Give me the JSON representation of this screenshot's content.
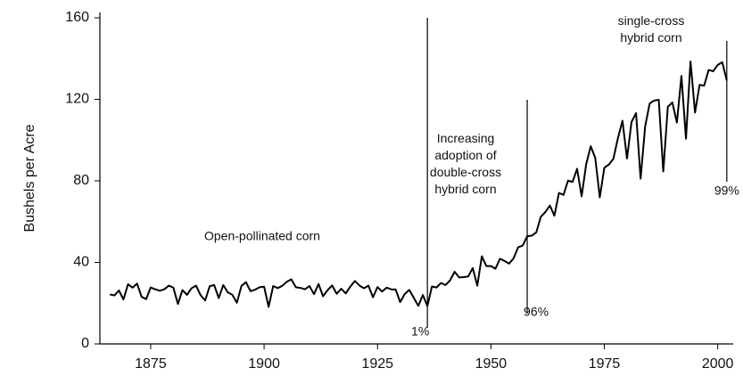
{
  "chart_data": {
    "type": "line",
    "y_label": "Bushels per Acre",
    "x": [
      1866,
      1867,
      1868,
      1869,
      1870,
      1871,
      1872,
      1873,
      1874,
      1875,
      1876,
      1877,
      1878,
      1879,
      1880,
      1881,
      1882,
      1883,
      1884,
      1885,
      1886,
      1887,
      1888,
      1889,
      1890,
      1891,
      1892,
      1893,
      1894,
      1895,
      1896,
      1897,
      1898,
      1899,
      1900,
      1901,
      1902,
      1903,
      1904,
      1905,
      1906,
      1907,
      1908,
      1909,
      1910,
      1911,
      1912,
      1913,
      1914,
      1915,
      1916,
      1917,
      1918,
      1919,
      1920,
      1921,
      1922,
      1923,
      1924,
      1925,
      1926,
      1927,
      1928,
      1929,
      1930,
      1931,
      1932,
      1933,
      1934,
      1935,
      1936,
      1937,
      1938,
      1939,
      1940,
      1941,
      1942,
      1943,
      1944,
      1945,
      1946,
      1947,
      1948,
      1949,
      1950,
      1951,
      1952,
      1953,
      1954,
      1955,
      1956,
      1957,
      1958,
      1959,
      1960,
      1961,
      1962,
      1963,
      1964,
      1965,
      1966,
      1967,
      1968,
      1969,
      1970,
      1971,
      1972,
      1973,
      1974,
      1975,
      1976,
      1977,
      1978,
      1979,
      1980,
      1981,
      1982,
      1983,
      1984,
      1985,
      1986,
      1987,
      1988,
      1989,
      1990,
      1991,
      1992,
      1993,
      1994,
      1995,
      1996,
      1997,
      1998,
      1999,
      2000,
      2001,
      2002
    ],
    "series": [
      {
        "color": "#000000",
        "values": [
          24.3,
          23.8,
          26.2,
          21.8,
          29.3,
          27.6,
          29.6,
          23.1,
          22.0,
          27.7,
          26.8,
          26.1,
          26.8,
          28.6,
          27.6,
          19.6,
          26.4,
          24.1,
          27.3,
          28.6,
          23.9,
          21.3,
          28.3,
          28.9,
          22.5,
          28.9,
          25.3,
          24.1,
          20.2,
          28.4,
          30.3,
          25.9,
          26.6,
          27.8,
          28.1,
          18.2,
          28.4,
          27.4,
          28.5,
          30.5,
          31.7,
          27.8,
          27.5,
          26.8,
          28.4,
          24.4,
          29.4,
          23.4,
          26.4,
          28.7,
          24.6,
          27.1,
          24.8,
          28.1,
          30.9,
          28.7,
          27.3,
          28.6,
          22.9,
          27.9,
          25.7,
          27.6,
          26.8,
          26.7,
          20.5,
          24.5,
          26.5,
          22.6,
          18.7,
          24.0,
          18.6,
          28.2,
          27.7,
          29.9,
          28.9,
          31.2,
          35.4,
          32.6,
          32.8,
          33.1,
          37.2,
          28.6,
          43.0,
          38.2,
          38.2,
          36.9,
          41.8,
          40.7,
          39.4,
          42.0,
          47.4,
          48.3,
          52.8,
          53.1,
          54.7,
          62.4,
          64.7,
          67.9,
          62.9,
          74.1,
          73.1,
          80.1,
          79.5,
          85.9,
          72.4,
          88.1,
          97.0,
          91.3,
          71.9,
          86.4,
          88.0,
          90.8,
          101.0,
          109.5,
          91.0,
          108.9,
          113.2,
          81.1,
          106.7,
          118.0,
          119.4,
          119.8,
          84.6,
          116.3,
          118.5,
          108.6,
          131.5,
          100.7,
          138.6,
          113.5,
          127.1,
          126.7,
          134.4,
          133.8,
          136.9,
          138.2,
          129.3
        ]
      }
    ],
    "xlim": [
      1864,
      2004
    ],
    "xticks": [
      1875,
      1900,
      1925,
      1950,
      1975,
      2000
    ],
    "ylim": [
      0,
      160
    ],
    "yticks": [
      0,
      40,
      80,
      120,
      160
    ],
    "annotations": [
      "Open-pollinated corn",
      "Increasing adoption of double-cross hybrid corn",
      "single-cross hybrid corn"
    ],
    "markers": [
      {
        "x": 1936,
        "label": "1%"
      },
      {
        "x": 1958,
        "label": "96%"
      },
      {
        "x": 2002,
        "label": "99%"
      }
    ]
  }
}
